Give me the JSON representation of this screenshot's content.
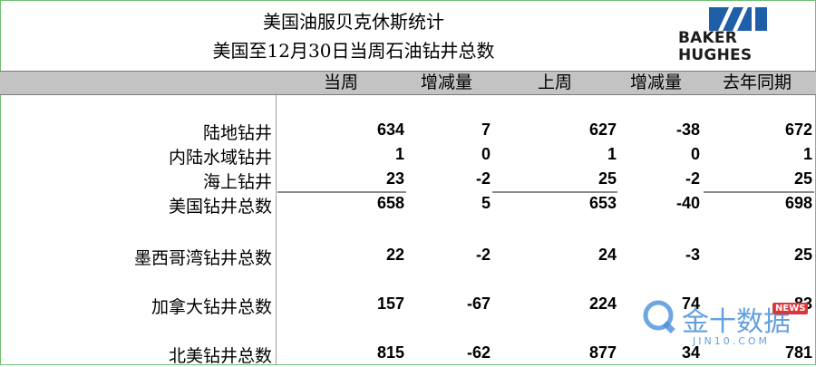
{
  "title": {
    "line1": "美国油服贝克休斯统计",
    "line2": "美国至12月30日当周石油钻井总数"
  },
  "logo": {
    "line1": "BAKER",
    "line2": "HUGHES"
  },
  "columns": [
    "当周",
    "增减量",
    "上周",
    "增减量",
    "去年同期"
  ],
  "rows": [
    {
      "label": "陆地钻井",
      "values": [
        "634",
        "7",
        "627",
        "-38",
        "672"
      ]
    },
    {
      "label": "内陆水域钻井",
      "values": [
        "1",
        "0",
        "1",
        "0",
        "1"
      ]
    },
    {
      "label": "海上钻井",
      "values": [
        "23",
        "-2",
        "25",
        "-2",
        "25"
      ]
    },
    {
      "label": "美国钻井总数",
      "values": [
        "658",
        "5",
        "653",
        "-40",
        "698"
      ]
    },
    {
      "label": "墨西哥湾钻井总数",
      "values": [
        "22",
        "-2",
        "24",
        "-3",
        "25"
      ]
    },
    {
      "label": "加拿大钻井总数",
      "values": [
        "157",
        "-67",
        "224",
        "74",
        "83"
      ]
    },
    {
      "label": "北美钻井总数",
      "values": [
        "815",
        "-62",
        "877",
        "34",
        "781"
      ]
    }
  ],
  "watermark": {
    "brand": "金十数据",
    "domain": "JIN10.COM",
    "badge": "NEWS"
  },
  "colors": {
    "header_band": "#c3c3c3",
    "logo_blue": "#1f5fa8",
    "watermark_blue": "#4a90d9"
  }
}
